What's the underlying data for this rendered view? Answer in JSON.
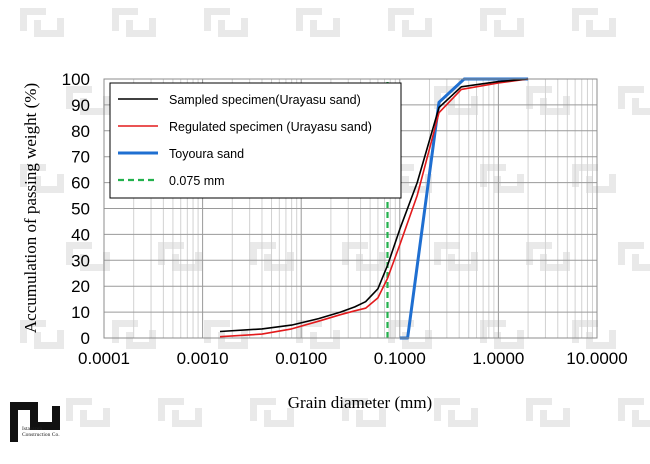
{
  "watermark": {
    "caption": "Istasazeh Construction Co.",
    "color": "#e9e9e9"
  },
  "chart_data": {
    "type": "line",
    "x_scale": "log",
    "title": "",
    "xlabel": "Grain diameter (mm)",
    "ylabel": "Accumulation of passing weight (%)",
    "xlim": [
      0.0001,
      10
    ],
    "ylim": [
      0,
      100
    ],
    "x_ticks": [
      0.0001,
      0.001,
      0.01,
      0.1,
      1,
      10
    ],
    "x_tick_labels": [
      "0.0001",
      "0.0010",
      "0.0100",
      "0.1000",
      "1.0000",
      "10.0000"
    ],
    "y_ticks": [
      0,
      10,
      20,
      30,
      40,
      50,
      60,
      70,
      80,
      90,
      100
    ],
    "y_tick_labels": [
      "0",
      "10",
      "20",
      "30",
      "40",
      "50",
      "60",
      "70",
      "80",
      "90",
      "100"
    ],
    "grid": true,
    "legend_position": "top-left",
    "series": [
      {
        "name": "Sampled specimen(Urayasu sand)",
        "color": "#000000",
        "style": "solid",
        "x": [
          0.0015,
          0.004,
          0.008,
          0.015,
          0.025,
          0.035,
          0.045,
          0.06,
          0.075,
          0.1,
          0.15,
          0.25,
          0.42,
          1.0,
          2.0
        ],
        "y": [
          2.5,
          3.5,
          5,
          7.5,
          10,
          12,
          14,
          19,
          28,
          42,
          60,
          89,
          97,
          99,
          100
        ]
      },
      {
        "name": "Regulated specimen (Urayasu sand)",
        "color": "#e31a1c",
        "style": "solid",
        "x": [
          0.0015,
          0.004,
          0.008,
          0.015,
          0.025,
          0.035,
          0.045,
          0.06,
          0.075,
          0.1,
          0.15,
          0.25,
          0.42,
          1.0,
          2.0
        ],
        "y": [
          0.5,
          1.5,
          3.5,
          6.5,
          9,
          10.5,
          11.5,
          15.5,
          23,
          36,
          55,
          87,
          96,
          98.5,
          100
        ]
      },
      {
        "name": "Toyoura sand",
        "color": "#1f6fd1",
        "style": "solid",
        "x": [
          0.1,
          0.12,
          0.25,
          0.45,
          2.0
        ],
        "y": [
          0,
          0,
          91,
          100,
          100
        ]
      },
      {
        "name": "0.075 mm",
        "color": "#22b14c",
        "style": "dashed",
        "x": [
          0.075,
          0.075
        ],
        "y": [
          0,
          100
        ]
      }
    ]
  }
}
